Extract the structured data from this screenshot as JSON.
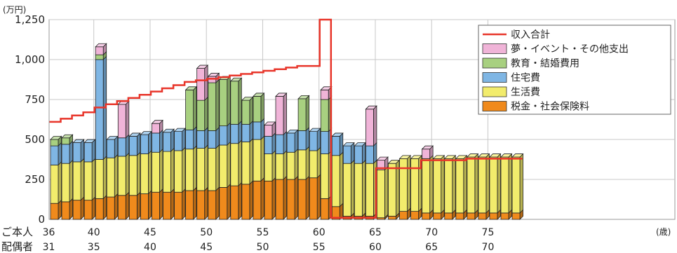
{
  "chart_data": {
    "type": "bar",
    "y_unit_label": "(万円)",
    "x_unit_label": "(歳)",
    "ylim": [
      0,
      1250
    ],
    "yticks": [
      0,
      250,
      500,
      750,
      1000,
      1250
    ],
    "ytick_labels": [
      "0",
      "250",
      "500",
      "750",
      "1,000",
      "1,250"
    ],
    "row_labels": [
      "ご本人",
      "配偶者"
    ],
    "age_ticks": {
      "self": [
        "36",
        "40",
        "45",
        "50",
        "55",
        "60",
        "65",
        "70",
        "75"
      ],
      "spouse": [
        "31",
        "35",
        "40",
        "45",
        "50",
        "55",
        "60",
        "65",
        "70"
      ]
    },
    "ages": [
      36,
      37,
      38,
      39,
      40,
      41,
      42,
      43,
      44,
      45,
      46,
      47,
      48,
      49,
      50,
      51,
      52,
      53,
      54,
      55,
      56,
      57,
      58,
      59,
      60,
      61,
      62,
      63,
      64,
      65,
      66,
      67,
      68,
      69,
      70,
      71,
      72,
      73,
      74,
      75,
      76,
      77
    ],
    "colors": {
      "tax": "#f08a1c",
      "living": "#f2ec6c",
      "housing": "#7fb6e4",
      "education": "#a8d080",
      "dream": "#f0b4d8",
      "income": "#e8352a"
    },
    "series": [
      {
        "name": "税金・社会保険料",
        "key": "tax",
        "values": [
          100,
          110,
          120,
          120,
          130,
          140,
          150,
          150,
          160,
          170,
          170,
          170,
          180,
          180,
          180,
          200,
          210,
          220,
          240,
          240,
          250,
          250,
          250,
          260,
          130,
          80,
          20,
          20,
          20,
          10,
          20,
          50,
          50,
          40,
          40,
          40,
          40,
          40,
          40,
          40,
          40,
          40
        ]
      },
      {
        "name": "生活費",
        "key": "living",
        "values": [
          240,
          240,
          240,
          240,
          245,
          245,
          245,
          250,
          250,
          250,
          255,
          260,
          260,
          265,
          265,
          265,
          265,
          265,
          260,
          170,
          160,
          170,
          185,
          170,
          280,
          320,
          330,
          330,
          330,
          300,
          330,
          330,
          330,
          340,
          340,
          340,
          340,
          350,
          350,
          350,
          350,
          350
        ]
      },
      {
        "name": "住宅費",
        "key": "housing",
        "values": [
          120,
          120,
          120,
          120,
          625,
          115,
          115,
          120,
          120,
          120,
          120,
          120,
          120,
          110,
          110,
          120,
          120,
          110,
          110,
          110,
          120,
          120,
          120,
          120,
          140,
          120,
          110,
          110,
          110,
          0,
          0,
          0,
          0,
          0,
          0,
          0,
          0,
          0,
          0,
          0,
          0,
          0
        ]
      },
      {
        "name": "教育・結婚費用",
        "key": "education",
        "values": [
          40,
          40,
          0,
          0,
          30,
          0,
          0,
          0,
          0,
          0,
          0,
          0,
          250,
          190,
          300,
          290,
          270,
          150,
          160,
          0,
          0,
          0,
          200,
          0,
          200,
          0,
          0,
          0,
          0,
          0,
          0,
          0,
          0,
          0,
          0,
          0,
          0,
          0,
          0,
          0,
          0,
          0
        ]
      },
      {
        "name": "夢・イベント・その他支出",
        "key": "dream",
        "values": [
          0,
          0,
          0,
          0,
          50,
          0,
          210,
          0,
          0,
          60,
          0,
          0,
          0,
          200,
          40,
          0,
          0,
          0,
          0,
          70,
          240,
          0,
          0,
          0,
          60,
          0,
          0,
          0,
          230,
          60,
          0,
          0,
          0,
          60,
          0,
          0,
          0,
          0,
          0,
          0,
          0,
          0
        ]
      },
      {
        "name": "収入合計",
        "key": "income",
        "values": [
          610,
          630,
          650,
          670,
          700,
          720,
          740,
          760,
          780,
          800,
          820,
          840,
          860,
          870,
          880,
          890,
          900,
          910,
          920,
          930,
          940,
          950,
          960,
          960,
          1250,
          10,
          10,
          10,
          10,
          320,
          320,
          320,
          320,
          370,
          370,
          370,
          370,
          380,
          380,
          380,
          380,
          380
        ]
      }
    ]
  }
}
